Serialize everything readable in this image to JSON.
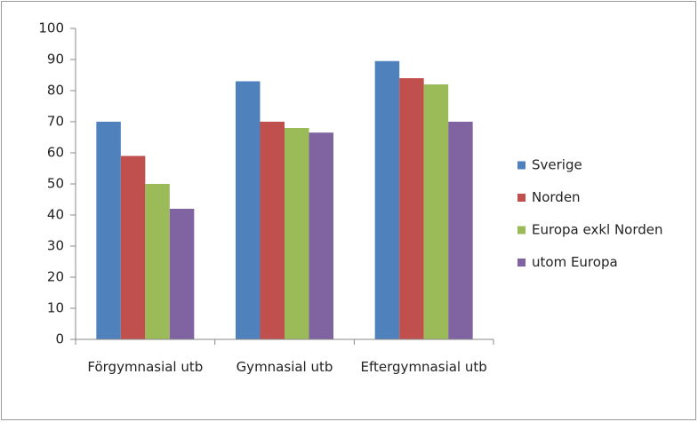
{
  "chart_data": {
    "type": "bar",
    "categories": [
      "Förgymnasial utb",
      "Gymnasial utb",
      "Eftergymnasial utb"
    ],
    "series": [
      {
        "name": "Sverige",
        "color": "#4f81bd",
        "values": [
          70,
          83,
          89.5
        ]
      },
      {
        "name": "Norden",
        "color": "#c0504d",
        "values": [
          59,
          70,
          84
        ]
      },
      {
        "name": "Europa exkl Norden",
        "color": "#9bbb59",
        "values": [
          50,
          68,
          82
        ]
      },
      {
        "name": "utom Europa",
        "color": "#8064a2",
        "values": [
          42,
          66.5,
          70
        ]
      }
    ],
    "ylim": [
      0,
      100
    ],
    "yticks": [
      0,
      10,
      20,
      30,
      40,
      50,
      60,
      70,
      80,
      90,
      100
    ],
    "grid": false,
    "legend": "right"
  }
}
